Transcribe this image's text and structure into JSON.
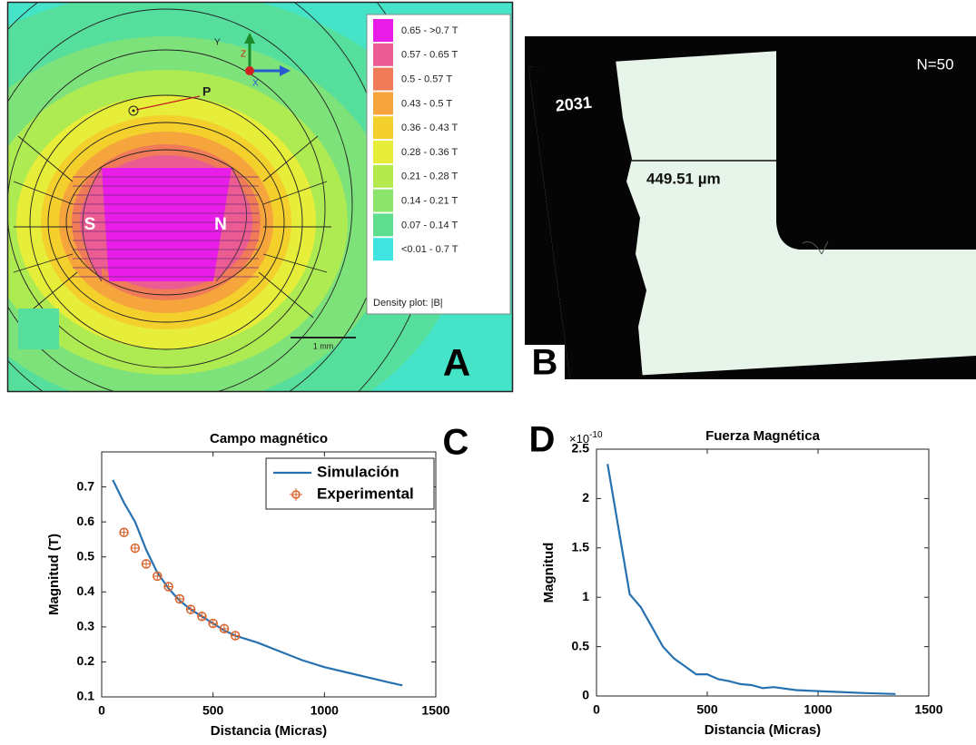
{
  "panel_a": {
    "label": "A",
    "axes": {
      "y": "Y",
      "z": "Z",
      "x": "X"
    },
    "point": "P",
    "poles": {
      "south": "S",
      "north": "N"
    },
    "scale_bar": "1 mm",
    "legend": {
      "items": [
        {
          "label": "0.65 - >0.7 T",
          "color": "#e81ee8"
        },
        {
          "label": "0.57 - 0.65 T",
          "color": "#ea5c92"
        },
        {
          "label": "0.5 - 0.57 T",
          "color": "#f07b58"
        },
        {
          "label": "0.43 - 0.5 T",
          "color": "#f5a53c"
        },
        {
          "label": "0.36 - 0.43 T",
          "color": "#f4d02c"
        },
        {
          "label": "0.28 - 0.36 T",
          "color": "#e6ee3a"
        },
        {
          "label": "0.21 - 0.28 T",
          "color": "#b4ea4e"
        },
        {
          "label": "0.14 - 0.21 T",
          "color": "#8ce46a"
        },
        {
          "label": "0.07 - 0.14 T",
          "color": "#5edd8e"
        },
        {
          "label": "<0.01 - 0.7 T",
          "color": "#3fe4e0"
        }
      ],
      "title": "Density plot: |B|"
    }
  },
  "panel_b": {
    "label": "B",
    "sample_id": "2031",
    "count": "N=50",
    "measurement": "449.51 µm"
  },
  "chart_data": [
    {
      "type": "line",
      "panel_label": "C",
      "title": "Campo magnético",
      "x_label": "Distancia (Micras)",
      "y_label": "Magnitud (T)",
      "xlim": [
        0,
        1500
      ],
      "xticks": [
        0,
        500,
        1000,
        1500
      ],
      "ylim": [
        0.1,
        0.8
      ],
      "yticks": [
        0.1,
        0.2,
        0.3,
        0.4,
        0.5,
        0.6,
        0.7
      ],
      "grid": false,
      "legend": "upper right",
      "series": [
        {
          "name": "Simulación",
          "color": "#2771b0",
          "style": "line",
          "x": [
            50,
            100,
            150,
            200,
            250,
            300,
            350,
            400,
            450,
            500,
            550,
            600,
            700,
            800,
            900,
            1000,
            1100,
            1200,
            1300,
            1350
          ],
          "values": [
            0.72,
            0.655,
            0.6,
            0.52,
            0.455,
            0.41,
            0.375,
            0.35,
            0.33,
            0.31,
            0.29,
            0.275,
            0.255,
            0.23,
            0.205,
            0.185,
            0.17,
            0.155,
            0.14,
            0.133
          ]
        },
        {
          "name": "Experimental",
          "color": "#d9632c",
          "style": "markers",
          "x": [
            100,
            150,
            200,
            250,
            300,
            350,
            400,
            450,
            500,
            550,
            600
          ],
          "values": [
            0.57,
            0.525,
            0.48,
            0.445,
            0.415,
            0.38,
            0.35,
            0.33,
            0.31,
            0.295,
            0.275
          ]
        }
      ]
    },
    {
      "type": "line",
      "panel_label": "D",
      "title": "Fuerza Magnética",
      "x_label": "Distancia (Micras)",
      "y_label": "Magnitud",
      "y_multiplier": {
        "base": "×10",
        "exponent": "-10"
      },
      "xlim": [
        0,
        1500
      ],
      "xticks": [
        0,
        500,
        1000,
        1500
      ],
      "ylim": [
        0,
        2.5
      ],
      "yticks": [
        0,
        0.5,
        1,
        1.5,
        2,
        2.5
      ],
      "grid": false,
      "series": [
        {
          "color": "#2771b0",
          "style": "line",
          "x": [
            50,
            150,
            200,
            250,
            300,
            350,
            400,
            450,
            500,
            550,
            600,
            650,
            700,
            750,
            800,
            900,
            1000,
            1100,
            1200,
            1350
          ],
          "values": [
            2.35,
            1.03,
            0.9,
            0.7,
            0.5,
            0.38,
            0.3,
            0.22,
            0.22,
            0.17,
            0.15,
            0.12,
            0.11,
            0.08,
            0.09,
            0.06,
            0.05,
            0.04,
            0.03,
            0.02
          ]
        }
      ]
    }
  ]
}
